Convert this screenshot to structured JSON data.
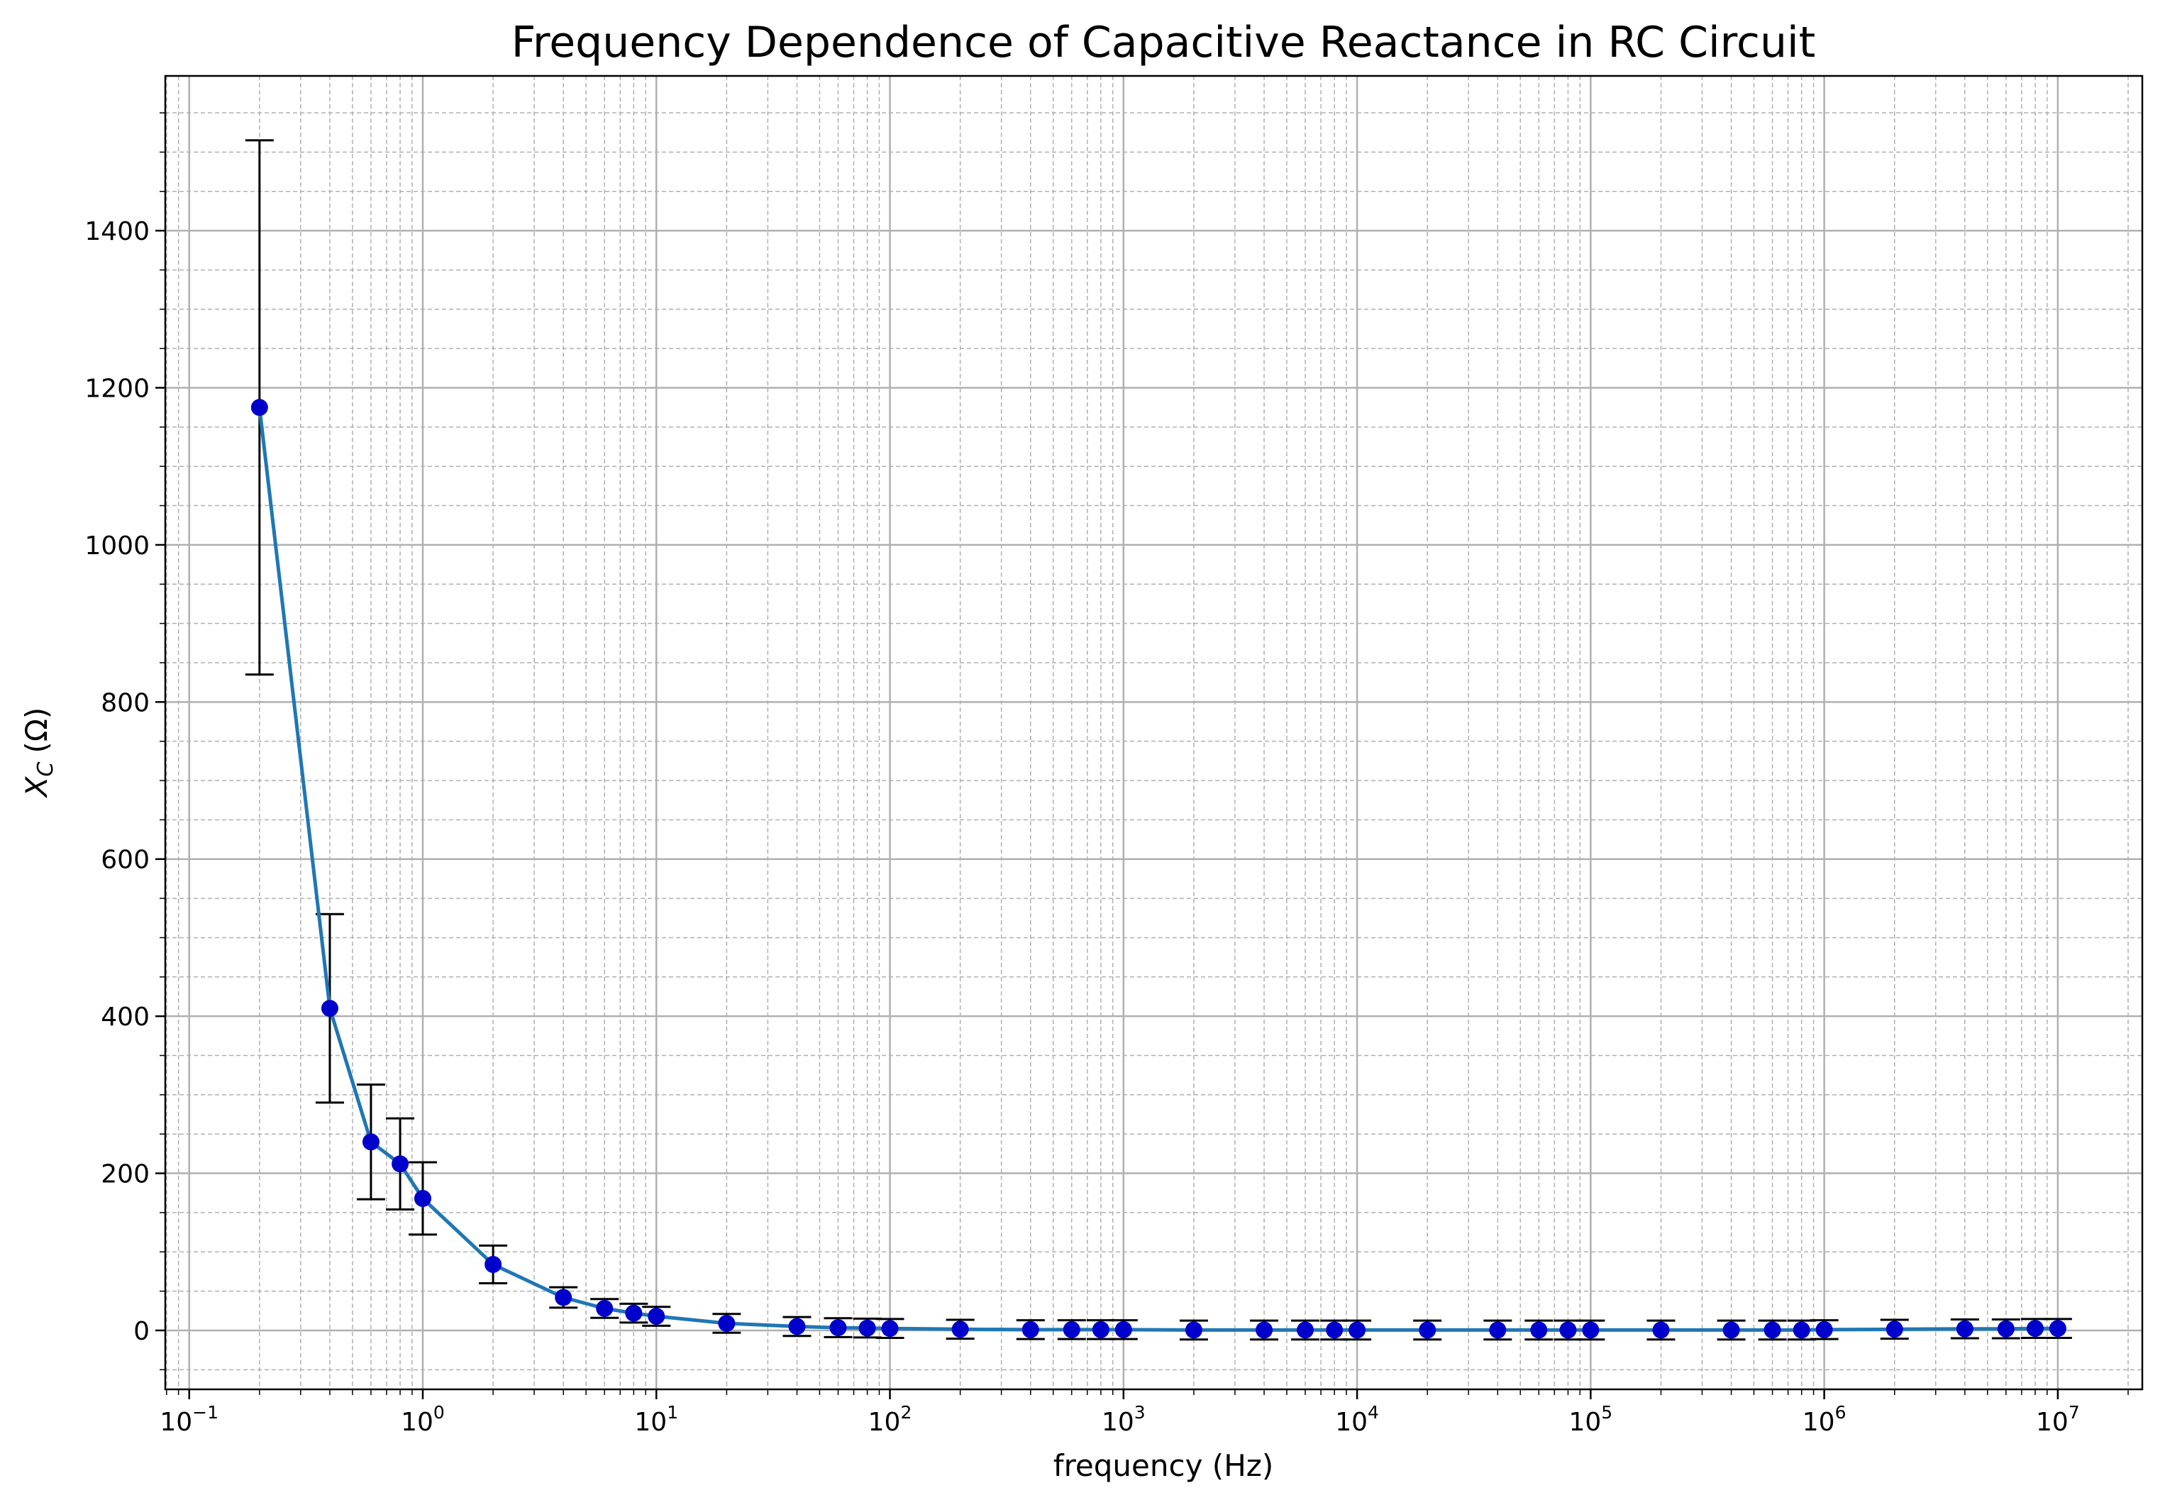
{
  "chart_data": {
    "type": "scatter",
    "title": "Frequency Dependence of Capacitive Reactance in RC Circuit",
    "xlabel": "frequency (Hz)",
    "ylabel_var": "X",
    "ylabel_sub": "C",
    "ylabel_unit": "(Ω)",
    "x_scale": "log",
    "xlim": [
      0.079,
      23000000
    ],
    "ylim": [
      -75,
      1597
    ],
    "grid": {
      "major": true,
      "minor": true
    },
    "x_ticks": [
      {
        "base": "10",
        "exp": "−1",
        "value": 0.1
      },
      {
        "base": "10",
        "exp": "0",
        "value": 1
      },
      {
        "base": "10",
        "exp": "1",
        "value": 10
      },
      {
        "base": "10",
        "exp": "2",
        "value": 100
      },
      {
        "base": "10",
        "exp": "3",
        "value": 1000
      },
      {
        "base": "10",
        "exp": "4",
        "value": 10000
      },
      {
        "base": "10",
        "exp": "5",
        "value": 100000
      },
      {
        "base": "10",
        "exp": "6",
        "value": 1000000
      },
      {
        "base": "10",
        "exp": "7",
        "value": 10000000
      }
    ],
    "y_ticks": [
      {
        "value": 0,
        "label": "0"
      },
      {
        "value": 200,
        "label": "200"
      },
      {
        "value": 400,
        "label": "400"
      },
      {
        "value": 600,
        "label": "600"
      },
      {
        "value": 800,
        "label": "800"
      },
      {
        "value": 1000,
        "label": "1000"
      },
      {
        "value": 1200,
        "label": "1200"
      },
      {
        "value": 1400,
        "label": "1400"
      }
    ],
    "colors": {
      "line": "#1f77b4",
      "marker": "#0000cc",
      "errorbar": "#000000",
      "grid": "#b0b0b0"
    },
    "series": [
      {
        "x": [
          0.2,
          0.4,
          0.6,
          0.8,
          1,
          2,
          4,
          6,
          8,
          10,
          20,
          40,
          60,
          80,
          100,
          200,
          400,
          600,
          800,
          1000,
          2000,
          4000,
          6000,
          8000,
          10000,
          20000,
          40000,
          60000,
          80000,
          100000,
          200000,
          400000,
          600000,
          800000,
          1000000,
          2000000,
          4000000,
          6000000,
          8000000,
          10000000
        ],
        "y": [
          1175,
          410,
          240,
          212,
          168,
          84,
          42,
          28,
          22,
          18,
          9,
          5,
          3.5,
          3,
          2.5,
          1.5,
          1,
          1,
          1,
          1,
          0.5,
          0.5,
          0.5,
          0.5,
          0.5,
          0.5,
          0.5,
          0.5,
          0.5,
          0.5,
          0.5,
          0.5,
          0.5,
          0.5,
          1,
          1.5,
          2,
          2,
          2.5,
          2.5
        ],
        "yerr_upper": [
          340,
          120,
          73,
          58,
          46,
          24,
          13,
          12,
          12,
          12,
          12,
          12,
          12,
          12,
          12,
          12,
          12,
          12,
          12,
          12,
          12,
          12,
          12,
          12,
          12,
          12,
          12,
          12,
          12,
          12,
          12,
          12,
          12,
          12,
          12,
          12,
          12,
          12,
          12,
          12
        ],
        "yerr_lower": [
          340,
          120,
          73,
          58,
          46,
          24,
          13,
          12,
          12,
          12,
          12,
          12,
          12,
          12,
          12,
          12,
          12,
          12,
          12,
          12,
          12,
          12,
          12,
          12,
          12,
          12,
          12,
          12,
          12,
          12,
          12,
          12,
          12,
          12,
          12,
          12,
          12,
          12,
          12,
          12
        ]
      }
    ]
  }
}
